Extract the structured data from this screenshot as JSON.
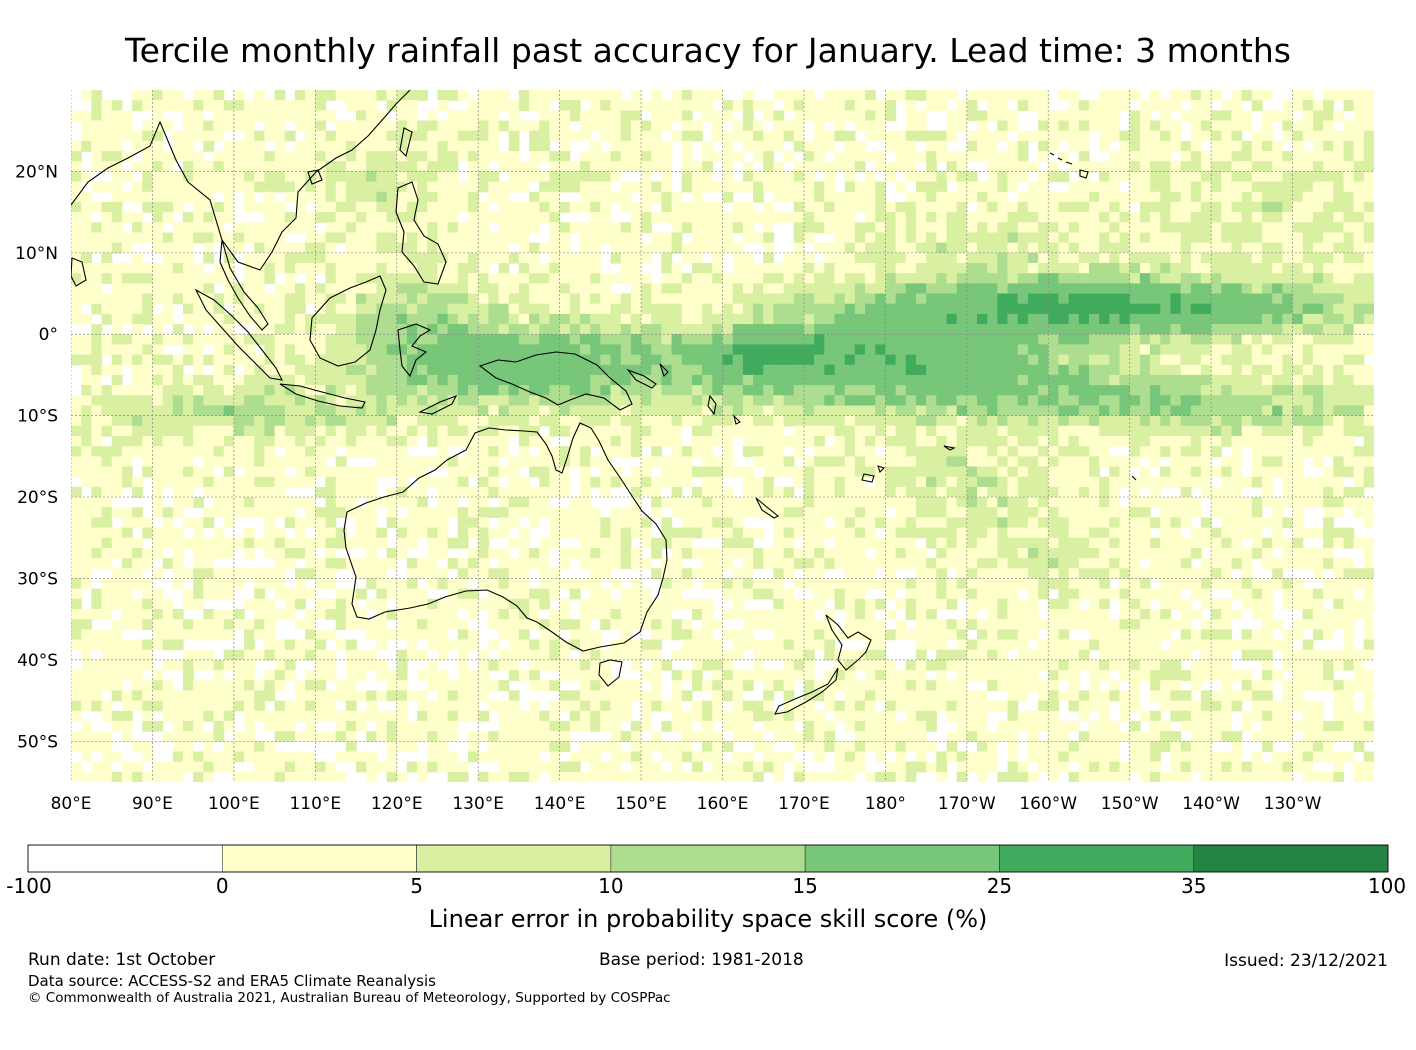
{
  "title": "Tercile monthly rainfall past accuracy for January. Lead time: 3 months",
  "map": {
    "lon_labels": [
      "80°E",
      "90°E",
      "100°E",
      "110°E",
      "120°E",
      "130°E",
      "140°E",
      "150°E",
      "160°E",
      "170°E",
      "180°",
      "170°W",
      "160°W",
      "150°W",
      "140°W",
      "130°W"
    ],
    "lat_labels": [
      "20°N",
      "10°N",
      "0°",
      "10°S",
      "20°S",
      "30°S",
      "40°S",
      "50°S"
    ],
    "lon_values": [
      80,
      90,
      100,
      110,
      120,
      130,
      140,
      150,
      160,
      170,
      180,
      190,
      200,
      210,
      220,
      230
    ],
    "lat_values": [
      20,
      10,
      0,
      -10,
      -20,
      -30,
      -40,
      -50
    ],
    "lon_range": [
      80,
      240
    ],
    "lat_range": [
      -55,
      30
    ],
    "landmasses": [
      "Australia",
      "New Zealand",
      "Papua New Guinea",
      "Borneo",
      "Sumatra",
      "Java",
      "Sulawesi",
      "Philippines",
      "Indochina",
      "Taiwan",
      "Hawaii",
      "Fiji",
      "New Caledonia",
      "Vanuatu",
      "Solomon Islands",
      "Sri Lanka"
    ]
  },
  "colorbar": {
    "boundaries": [
      "-100",
      "0",
      "5",
      "10",
      "15",
      "25",
      "35",
      "100"
    ],
    "colors": [
      "#ffffff",
      "#ffffcc",
      "#d9f0a3",
      "#addd8e",
      "#78c679",
      "#41ab5d",
      "#238443"
    ],
    "label": "Linear error in probability space skill score (%)"
  },
  "footer": {
    "run_date": "Run date: 1st October",
    "base_period": "Base period: 1981-2018",
    "issued": "Issued: 23/12/2021",
    "data_source": "Data source: ACCESS-S2 and ERA5 Climate Reanalysis",
    "copyright": "© Commonwealth of Australia 2021, Australian Bureau of Meteorology, Supported by COSPPac"
  }
}
